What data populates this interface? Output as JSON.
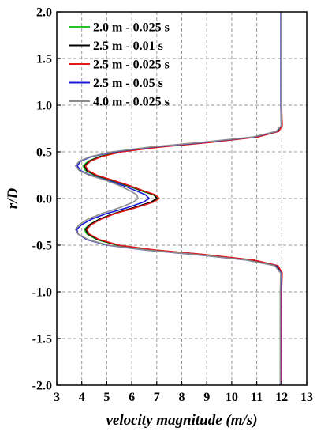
{
  "chart_data": {
    "type": "line",
    "xlabel": "velocity magnitude (m/s)",
    "ylabel": "r/D",
    "xlim": [
      3,
      13
    ],
    "ylim": [
      -2.0,
      2.0
    ],
    "xticks": [
      3,
      4,
      5,
      6,
      7,
      8,
      9,
      10,
      11,
      12,
      13
    ],
    "yticks": [
      -2.0,
      -1.5,
      -1.0,
      -0.5,
      0.0,
      0.5,
      1.0,
      1.5,
      2.0
    ],
    "xtick_labels": [
      "3",
      "4",
      "5",
      "6",
      "7",
      "8",
      "9",
      "10",
      "11",
      "12",
      "13"
    ],
    "ytick_labels": [
      "-2.0",
      "-1.5",
      "-1.0",
      "-0.5",
      "0.0",
      "0.5",
      "1.0",
      "1.5",
      "2.0"
    ],
    "grid": true,
    "legend_position": "top-left",
    "series": [
      {
        "name": "2.0 m - 0.025 s",
        "color": "#22c522",
        "points": [
          [
            11.98,
            2.0
          ],
          [
            11.98,
            1.5
          ],
          [
            11.98,
            1.0
          ],
          [
            12.0,
            0.78
          ],
          [
            11.85,
            0.72
          ],
          [
            11.0,
            0.66
          ],
          [
            9.0,
            0.6
          ],
          [
            7.0,
            0.55
          ],
          [
            5.5,
            0.5
          ],
          [
            4.7,
            0.45
          ],
          [
            4.25,
            0.4
          ],
          [
            4.05,
            0.35
          ],
          [
            4.15,
            0.3
          ],
          [
            4.5,
            0.25
          ],
          [
            5.1,
            0.2
          ],
          [
            5.8,
            0.14
          ],
          [
            6.4,
            0.08
          ],
          [
            6.85,
            0.04
          ],
          [
            7.05,
            0.0
          ],
          [
            6.8,
            -0.04
          ],
          [
            6.1,
            -0.1
          ],
          [
            5.3,
            -0.16
          ],
          [
            4.7,
            -0.22
          ],
          [
            4.3,
            -0.28
          ],
          [
            4.1,
            -0.33
          ],
          [
            4.2,
            -0.38
          ],
          [
            4.6,
            -0.44
          ],
          [
            5.4,
            -0.5
          ],
          [
            6.8,
            -0.55
          ],
          [
            8.8,
            -0.6
          ],
          [
            10.8,
            -0.66
          ],
          [
            11.8,
            -0.72
          ],
          [
            12.0,
            -0.8
          ],
          [
            11.97,
            -1.0
          ],
          [
            11.97,
            -1.5
          ],
          [
            11.97,
            -2.0
          ]
        ]
      },
      {
        "name": "2.5 m - 0.01 s",
        "color": "#000000",
        "points": [
          [
            11.98,
            2.0
          ],
          [
            11.98,
            1.5
          ],
          [
            11.98,
            1.0
          ],
          [
            12.0,
            0.78
          ],
          [
            11.85,
            0.72
          ],
          [
            11.0,
            0.66
          ],
          [
            9.0,
            0.6
          ],
          [
            7.0,
            0.55
          ],
          [
            5.55,
            0.5
          ],
          [
            4.75,
            0.45
          ],
          [
            4.3,
            0.4
          ],
          [
            4.1,
            0.35
          ],
          [
            4.2,
            0.3
          ],
          [
            4.55,
            0.25
          ],
          [
            5.15,
            0.2
          ],
          [
            5.85,
            0.14
          ],
          [
            6.45,
            0.08
          ],
          [
            6.9,
            0.04
          ],
          [
            7.0,
            0.0
          ],
          [
            6.75,
            -0.04
          ],
          [
            6.05,
            -0.1
          ],
          [
            5.3,
            -0.16
          ],
          [
            4.72,
            -0.22
          ],
          [
            4.32,
            -0.28
          ],
          [
            4.15,
            -0.33
          ],
          [
            4.25,
            -0.38
          ],
          [
            4.65,
            -0.44
          ],
          [
            5.45,
            -0.5
          ],
          [
            6.85,
            -0.55
          ],
          [
            8.85,
            -0.6
          ],
          [
            10.85,
            -0.66
          ],
          [
            11.82,
            -0.72
          ],
          [
            12.0,
            -0.8
          ],
          [
            11.97,
            -1.0
          ],
          [
            11.97,
            -1.5
          ],
          [
            11.97,
            -2.0
          ]
        ]
      },
      {
        "name": "2.5 m - 0.025 s",
        "color": "#e11a1a",
        "points": [
          [
            11.99,
            2.0
          ],
          [
            11.99,
            1.5
          ],
          [
            11.99,
            1.0
          ],
          [
            12.02,
            0.78
          ],
          [
            11.88,
            0.72
          ],
          [
            11.05,
            0.66
          ],
          [
            9.1,
            0.6
          ],
          [
            7.1,
            0.55
          ],
          [
            5.6,
            0.5
          ],
          [
            4.8,
            0.45
          ],
          [
            4.35,
            0.4
          ],
          [
            4.15,
            0.35
          ],
          [
            4.25,
            0.3
          ],
          [
            4.6,
            0.25
          ],
          [
            5.2,
            0.2
          ],
          [
            5.9,
            0.14
          ],
          [
            6.5,
            0.08
          ],
          [
            6.95,
            0.04
          ],
          [
            7.1,
            0.0
          ],
          [
            6.85,
            -0.04
          ],
          [
            6.15,
            -0.1
          ],
          [
            5.35,
            -0.16
          ],
          [
            4.78,
            -0.22
          ],
          [
            4.38,
            -0.28
          ],
          [
            4.2,
            -0.33
          ],
          [
            4.3,
            -0.38
          ],
          [
            4.7,
            -0.44
          ],
          [
            5.5,
            -0.5
          ],
          [
            6.9,
            -0.55
          ],
          [
            8.9,
            -0.6
          ],
          [
            10.9,
            -0.66
          ],
          [
            11.85,
            -0.72
          ],
          [
            12.02,
            -0.8
          ],
          [
            11.99,
            -1.0
          ],
          [
            11.99,
            -1.5
          ],
          [
            11.99,
            -2.0
          ]
        ]
      },
      {
        "name": "2.5 m - 0.05 s",
        "color": "#1a1ad6",
        "points": [
          [
            11.96,
            2.0
          ],
          [
            11.96,
            1.5
          ],
          [
            11.96,
            1.0
          ],
          [
            11.98,
            0.78
          ],
          [
            11.8,
            0.72
          ],
          [
            10.9,
            0.66
          ],
          [
            8.8,
            0.6
          ],
          [
            6.8,
            0.55
          ],
          [
            5.3,
            0.5
          ],
          [
            4.4,
            0.45
          ],
          [
            3.95,
            0.4
          ],
          [
            3.82,
            0.35
          ],
          [
            3.95,
            0.3
          ],
          [
            4.35,
            0.25
          ],
          [
            4.95,
            0.2
          ],
          [
            5.65,
            0.14
          ],
          [
            6.2,
            0.08
          ],
          [
            6.55,
            0.04
          ],
          [
            6.7,
            0.0
          ],
          [
            6.45,
            -0.04
          ],
          [
            5.8,
            -0.1
          ],
          [
            5.0,
            -0.16
          ],
          [
            4.4,
            -0.22
          ],
          [
            4.0,
            -0.28
          ],
          [
            3.8,
            -0.33
          ],
          [
            3.85,
            -0.38
          ],
          [
            4.2,
            -0.44
          ],
          [
            5.0,
            -0.5
          ],
          [
            6.5,
            -0.55
          ],
          [
            8.5,
            -0.6
          ],
          [
            10.6,
            -0.66
          ],
          [
            11.75,
            -0.72
          ],
          [
            11.98,
            -0.8
          ],
          [
            11.95,
            -1.0
          ],
          [
            11.95,
            -1.5
          ],
          [
            11.95,
            -2.0
          ]
        ]
      },
      {
        "name": "4.0 m - 0.025 s",
        "color": "#8c8c8c",
        "points": [
          [
            11.97,
            2.0
          ],
          [
            11.97,
            1.5
          ],
          [
            11.97,
            1.0
          ],
          [
            11.98,
            0.78
          ],
          [
            11.78,
            0.72
          ],
          [
            10.85,
            0.66
          ],
          [
            8.7,
            0.6
          ],
          [
            6.7,
            0.55
          ],
          [
            5.2,
            0.5
          ],
          [
            4.35,
            0.45
          ],
          [
            3.9,
            0.4
          ],
          [
            3.75,
            0.35
          ],
          [
            3.9,
            0.3
          ],
          [
            4.3,
            0.25
          ],
          [
            4.9,
            0.2
          ],
          [
            5.5,
            0.14
          ],
          [
            5.95,
            0.08
          ],
          [
            6.2,
            0.04
          ],
          [
            6.25,
            0.0
          ],
          [
            6.05,
            -0.04
          ],
          [
            5.5,
            -0.1
          ],
          [
            4.8,
            -0.16
          ],
          [
            4.25,
            -0.22
          ],
          [
            3.9,
            -0.28
          ],
          [
            3.75,
            -0.33
          ],
          [
            3.85,
            -0.38
          ],
          [
            4.25,
            -0.44
          ],
          [
            5.05,
            -0.5
          ],
          [
            6.55,
            -0.55
          ],
          [
            8.55,
            -0.6
          ],
          [
            10.6,
            -0.66
          ],
          [
            11.72,
            -0.72
          ],
          [
            11.96,
            -0.8
          ],
          [
            11.94,
            -1.0
          ],
          [
            11.94,
            -1.5
          ],
          [
            11.94,
            -2.0
          ]
        ]
      }
    ]
  }
}
